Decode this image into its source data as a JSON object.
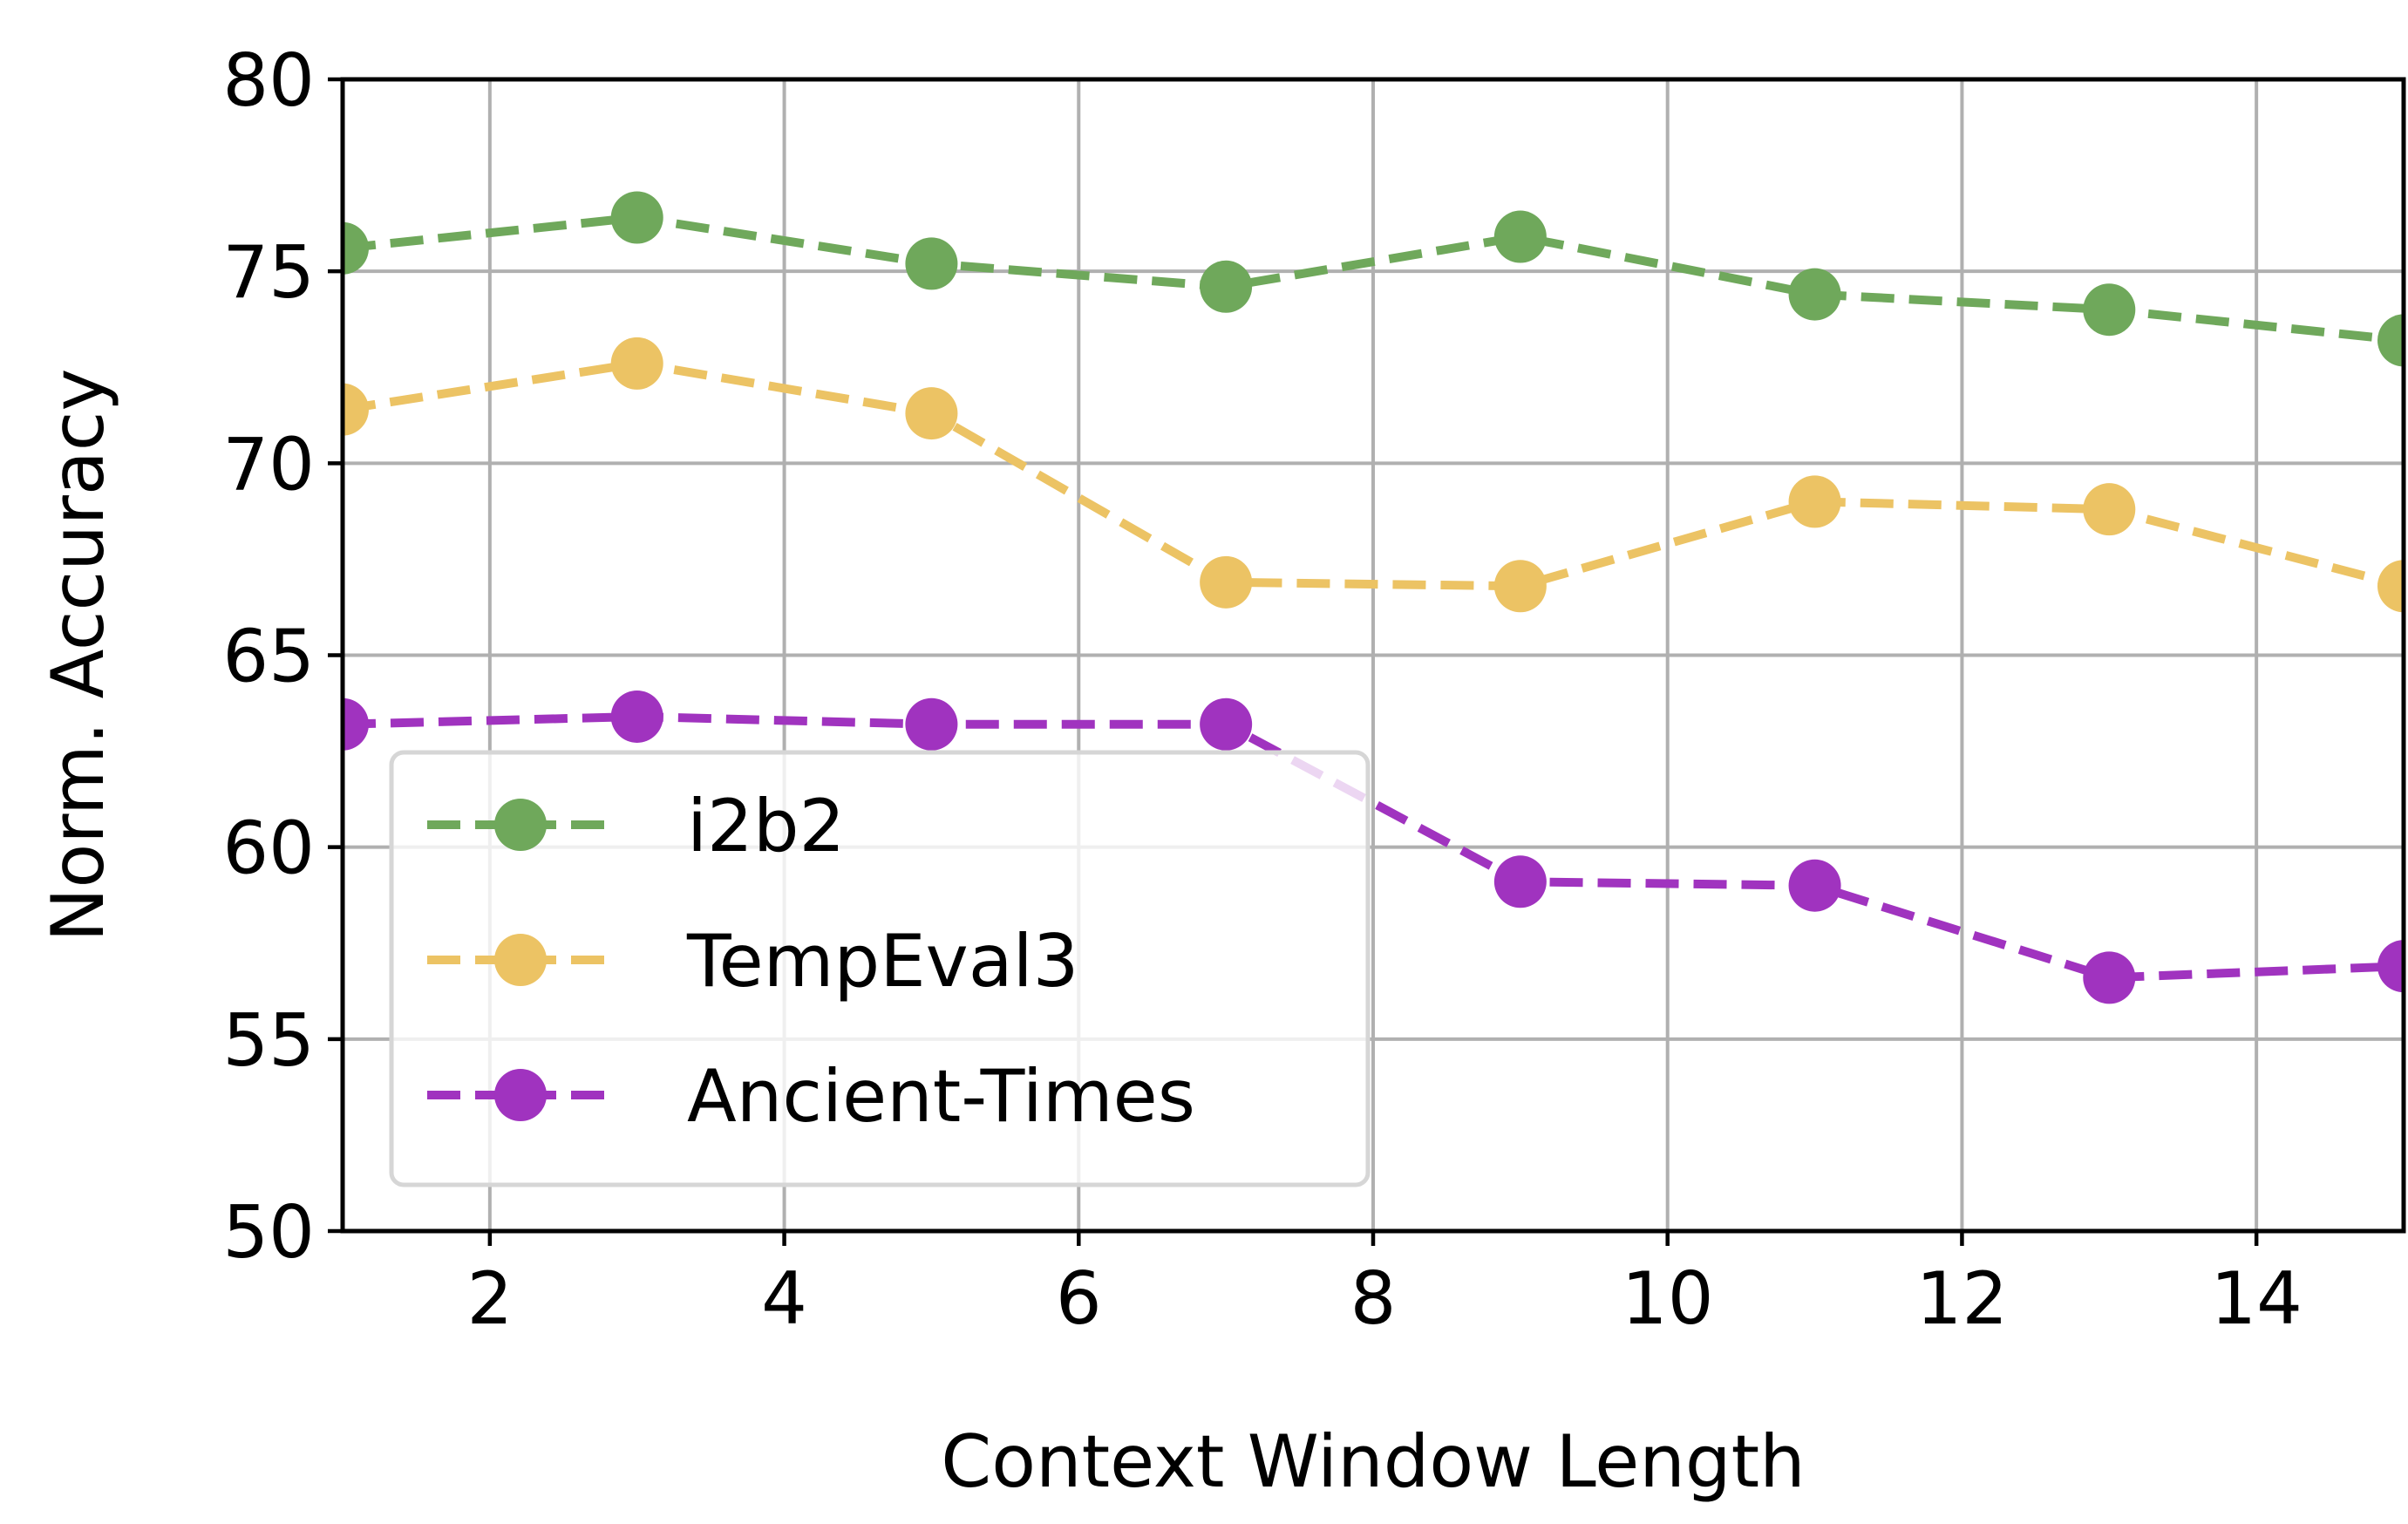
{
  "chart_data": {
    "type": "line",
    "xlabel": "Context Window Length",
    "ylabel": "Norm. Accuracy",
    "xlim": [
      1,
      15
    ],
    "ylim": [
      50,
      80
    ],
    "xticks": [
      2,
      4,
      6,
      8,
      10,
      12,
      14
    ],
    "yticks": [
      50,
      55,
      60,
      65,
      70,
      75,
      80
    ],
    "x": [
      1,
      3,
      5,
      7,
      9,
      11,
      13,
      15
    ],
    "grid": true,
    "legend_position": "lower-left",
    "line_style": "dashed",
    "marker": "circle",
    "series": [
      {
        "name": "i2b2",
        "color": "#6fa85b",
        "values": [
          75.6,
          76.4,
          75.2,
          74.6,
          75.9,
          74.4,
          74.0,
          73.2
        ]
      },
      {
        "name": "TempEval3",
        "color": "#ecc364",
        "values": [
          71.4,
          72.6,
          71.3,
          66.9,
          66.8,
          69.0,
          68.8,
          66.8
        ]
      },
      {
        "name": "Ancient-Times",
        "color": "#a033bf",
        "values": [
          63.2,
          63.4,
          63.2,
          63.2,
          59.1,
          59.0,
          56.6,
          56.9
        ]
      }
    ]
  }
}
